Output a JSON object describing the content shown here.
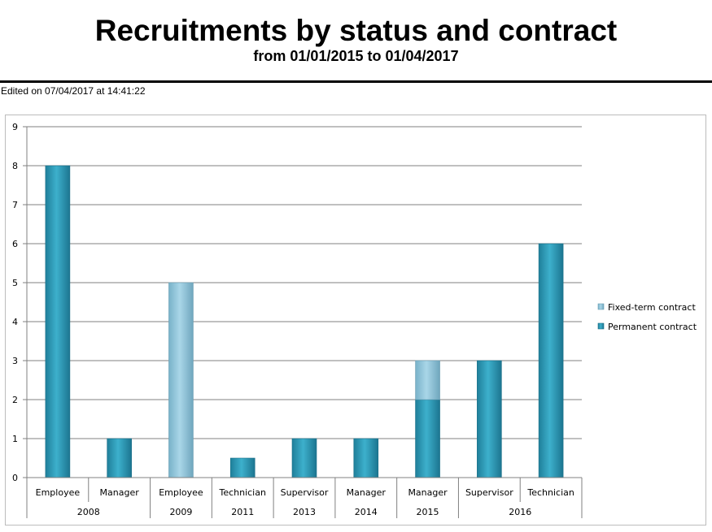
{
  "header": {
    "title": "Recruitments by status and contract",
    "subtitle": "from 01/01/2015 to 01/04/2017",
    "edited": "Edited on 07/04/2017 at 14:41:22"
  },
  "colors": {
    "permanent": "#2a9ab7",
    "fixed_term": "#8fc4da",
    "grid": "#808080"
  },
  "chart_data": {
    "type": "bar",
    "stacked": true,
    "title": "Recruitments by status and contract",
    "subtitle": "from 01/01/2015 to 01/04/2017",
    "xlabel": "",
    "ylabel": "",
    "ylim": [
      0,
      9
    ],
    "yticks": [
      "0",
      "1",
      "2",
      "3",
      "4",
      "5",
      "6",
      "7",
      "8",
      "9"
    ],
    "categories": [
      "Employee",
      "Manager",
      "Employee",
      "Technician",
      "Supervisor",
      "Manager",
      "Manager",
      "Supervisor",
      "Technician"
    ],
    "groups": [
      {
        "label": "2008",
        "count": 2
      },
      {
        "label": "2009",
        "count": 1
      },
      {
        "label": "2011",
        "count": 1
      },
      {
        "label": "2013",
        "count": 1
      },
      {
        "label": "2014",
        "count": 1
      },
      {
        "label": "2015",
        "count": 1
      },
      {
        "label": "2016",
        "count": 2
      }
    ],
    "series": [
      {
        "name": "Permanent contract",
        "values": [
          8,
          1,
          0,
          0.5,
          1,
          1,
          2,
          3,
          6
        ]
      },
      {
        "name": "Fixed-term contract",
        "values": [
          0,
          0,
          5,
          0,
          0,
          0,
          1,
          0,
          0
        ]
      }
    ],
    "legend": {
      "position": "right",
      "entries": [
        "Fixed-term contract",
        "Permanent contract"
      ]
    },
    "grid": true
  }
}
